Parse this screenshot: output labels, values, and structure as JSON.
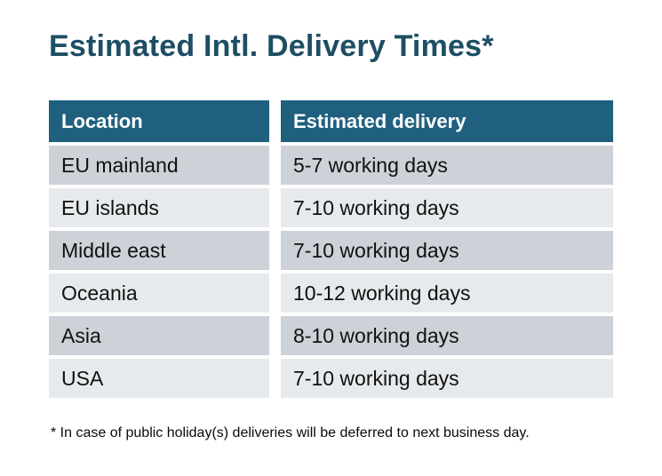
{
  "title": "Estimated Intl. Delivery Times*",
  "table": {
    "headers": [
      "Location",
      "Estimated delivery"
    ],
    "rows": [
      {
        "location": "EU mainland",
        "delivery": "5-7 working days"
      },
      {
        "location": "EU islands",
        "delivery": "7-10 working days"
      },
      {
        "location": "Middle east",
        "delivery": "7-10 working days"
      },
      {
        "location": "Oceania",
        "delivery": "10-12 working days"
      },
      {
        "location": "Asia",
        "delivery": "8-10 working days"
      },
      {
        "location": "USA",
        "delivery": "7-10 working days"
      }
    ]
  },
  "footnote": "* In case of public holiday(s) deliveries will be deferred to next business day.",
  "colors": {
    "title": "#1d4e63",
    "header_bg": "#20607f",
    "header_text": "#ffffff",
    "row_dark": "#cdd1d8",
    "row_light": "#e7eaec",
    "cell_text": "#111111",
    "background": "#ffffff"
  }
}
